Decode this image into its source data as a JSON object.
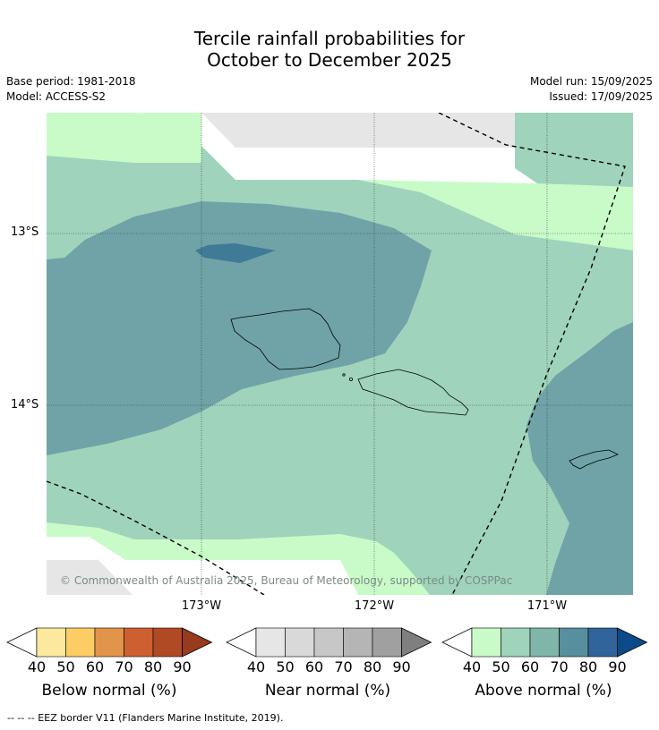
{
  "title_line1": "Tercile rainfall probabilities for",
  "title_line2": "October to December 2025",
  "base_period": "Base period: 1981-2018",
  "model": "Model: ACCESS-S2",
  "model_run": "Model run: 15/09/2025",
  "issued": "Issued: 17/09/2025",
  "copyright": "© Commonwealth of Australia 2025, Bureau of Meteorology, supported by COSPPac",
  "lon_labels": [
    "173°W",
    "172°W",
    "171°W"
  ],
  "lat_labels": [
    "13°S",
    "14°S"
  ],
  "colorbars": [
    {
      "name": "Below normal (%)",
      "ticks": [
        "40",
        "50",
        "60",
        "70",
        "80",
        "90"
      ],
      "colors": [
        "#ffffff",
        "#fde99e",
        "#fdcd65",
        "#e2944a",
        "#cd5f30",
        "#b04a25",
        "#973a1e"
      ]
    },
    {
      "name": "Near normal (%)",
      "ticks": [
        "40",
        "50",
        "60",
        "70",
        "80",
        "90"
      ],
      "colors": [
        "#ffffff",
        "#e6e6e6",
        "#d9d9d9",
        "#c7c7c7",
        "#b5b5b5",
        "#a0a0a0",
        "#7f7f7f"
      ]
    },
    {
      "name": "Above normal (%)",
      "ticks": [
        "40",
        "50",
        "60",
        "70",
        "80",
        "90"
      ],
      "colors": [
        "#ffffff",
        "#c9fbc9",
        "#9fd3bc",
        "#80b5a9",
        "#578f9e",
        "#30649a",
        "#0d4a8a"
      ]
    }
  ],
  "footnote": "--  --  -- EEZ border V11 (Flanders Marine Institute, 2019).",
  "colors": {
    "light_green": "#c9fbc9",
    "mid_green": "#9fd3bc",
    "teal": "#6fa3a7",
    "blue": "#3f7a96",
    "grey": "#e6e6e6"
  }
}
